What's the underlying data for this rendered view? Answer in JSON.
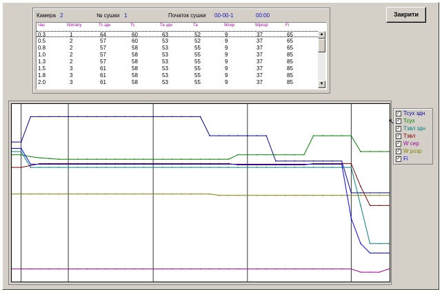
{
  "header": {
    "chamber_label": "Камера",
    "chamber_value": "2",
    "drying_no_label": "№ сушки",
    "drying_no_value": "1",
    "start_label": "Початок сушки",
    "start_date": "00-00-1",
    "start_time": "00:00"
  },
  "close_button": "Закрити",
  "table": {
    "columns": [
      "Час",
      "N/етапу",
      "Тс здн",
      "Тс",
      "Та здн",
      "Та",
      "Wсер",
      "Wроэр",
      "Fi"
    ],
    "rows": [
      [
        "0.3",
        "1",
        "64",
        "60",
        "63",
        "52",
        "9",
        "37",
        "65"
      ],
      [
        "0.5",
        "2",
        "57",
        "60",
        "53",
        "52",
        "9",
        "37",
        "65"
      ],
      [
        "0.8",
        "2",
        "57",
        "58",
        "53",
        "55",
        "9",
        "37",
        "65"
      ],
      [
        "1.0",
        "2",
        "57",
        "58",
        "53",
        "55",
        "9",
        "37",
        "85"
      ],
      [
        "1.3",
        "2",
        "57",
        "58",
        "53",
        "55",
        "9",
        "37",
        "85"
      ],
      [
        "1.5",
        "3",
        "61",
        "58",
        "53",
        "55",
        "9",
        "37",
        "85"
      ],
      [
        "1.8",
        "3",
        "61",
        "58",
        "53",
        "55",
        "9",
        "37",
        "85"
      ],
      [
        "2.0",
        "3",
        "61",
        "58",
        "53",
        "55",
        "9",
        "37",
        "85"
      ]
    ]
  },
  "scroll_up_glyph": "▲",
  "scroll_down_glyph": "▼",
  "legend": [
    {
      "label": "Тсух здн",
      "color": "#0000a0",
      "checked": "✓"
    },
    {
      "label": "Тсух",
      "color": "#008000",
      "checked": "✓"
    },
    {
      "label": "Тзвл здн",
      "color": "#008080",
      "checked": "✓"
    },
    {
      "label": "Тзвл",
      "color": "#800000",
      "checked": "✓"
    },
    {
      "label": "W сер",
      "color": "#a000a0",
      "checked": "✓"
    },
    {
      "label": "W розр",
      "color": "#808000",
      "checked": "✓"
    },
    {
      "label": "Fi",
      "color": "#0000ff",
      "checked": "✓"
    }
  ],
  "cursor_glyph": "↖",
  "chart_data": {
    "type": "line",
    "series": [
      {
        "name": "Тсух здн",
        "color": "#0000a0",
        "values": [
          60,
          60,
          64,
          64,
          64,
          64,
          64,
          64,
          64,
          64,
          64,
          64,
          64,
          64,
          64,
          64,
          64,
          64,
          64,
          64,
          64,
          61,
          61,
          61,
          61,
          61,
          61,
          61,
          57,
          57,
          57,
          57,
          57,
          57,
          57,
          57,
          52,
          52,
          52,
          52,
          52
        ]
      },
      {
        "name": "Тсух",
        "color": "#008000",
        "values": [
          58,
          58,
          57.7,
          57.5,
          57.4,
          57.3,
          57.3,
          57.3,
          57.3,
          57.3,
          57.3,
          57.3,
          57.3,
          57.3,
          57.3,
          57.3,
          57.3,
          57.3,
          57.3,
          57.3,
          57.3,
          57.3,
          57.3,
          57.3,
          58,
          58,
          58,
          58,
          58,
          58,
          58,
          58,
          61,
          61,
          61,
          61,
          61,
          58.5,
          58.5,
          58.5,
          58.5
        ]
      },
      {
        "name": "Тзвл здн",
        "color": "#008080",
        "values": [
          58.5,
          58.5,
          56,
          56,
          56,
          56,
          56,
          56,
          56,
          56,
          56,
          56,
          56,
          56,
          56,
          56,
          56,
          56,
          56,
          56,
          56,
          56,
          56,
          56,
          56,
          56,
          56,
          56,
          56,
          56,
          56,
          56,
          56,
          56,
          56,
          56,
          56,
          50,
          44,
          44,
          44
        ]
      },
      {
        "name": "Тзвл",
        "color": "#800000",
        "values": [
          56,
          56,
          56.3,
          56.6,
          56.6,
          56.6,
          56.6,
          56.6,
          56.6,
          56.6,
          56.6,
          56.6,
          56.6,
          56.6,
          56.6,
          56.6,
          56.6,
          56.6,
          56.6,
          56.6,
          56.6,
          56.6,
          56.6,
          56.6,
          56.4,
          56.4,
          56.4,
          56.4,
          56.4,
          56.4,
          56.4,
          56.4,
          56.6,
          56.6,
          56.6,
          56.6,
          56.6,
          53,
          50,
          50,
          50
        ]
      },
      {
        "name": "W сер",
        "color": "#a000a0",
        "values": [
          40,
          40,
          40,
          40,
          40,
          40,
          40,
          40,
          40,
          40,
          40,
          40,
          40,
          40,
          40,
          40,
          40,
          40,
          40,
          40,
          40,
          40,
          40,
          40,
          40,
          40,
          40,
          40,
          40,
          40,
          40,
          40,
          40,
          40,
          40,
          40,
          40,
          39.5,
          39.5,
          39.5,
          40
        ]
      },
      {
        "name": "W розр",
        "color": "#808000",
        "values": [
          51.8,
          51.8,
          51.8,
          51.8,
          51.8,
          51.8,
          51.8,
          51.8,
          51.8,
          51.8,
          51.8,
          51.8,
          51.8,
          51.8,
          51.8,
          51.8,
          51.8,
          51.8,
          51.8,
          51.8,
          51.8,
          51.8,
          51.6,
          51.6,
          51.6,
          51.6,
          51.6,
          51.6,
          51.6,
          51.6,
          51.6,
          51.6,
          51.6,
          51.6,
          51.6,
          51.6,
          51.6,
          51.6,
          51.6,
          51.6,
          51.6
        ]
      },
      {
        "name": "Fi",
        "color": "#0000ff",
        "values": [
          59,
          59,
          56.5,
          56.5,
          56.5,
          56.5,
          56.5,
          56.5,
          56.5,
          56.5,
          56.5,
          56.5,
          56.5,
          56.5,
          56.5,
          56.5,
          56.5,
          56.5,
          56.5,
          56.5,
          56.5,
          56.5,
          56.5,
          56.5,
          56.5,
          56.5,
          56.5,
          56.5,
          56.5,
          56.5,
          56.5,
          56.5,
          56.5,
          56.5,
          56.5,
          56.5,
          48,
          44,
          42.5,
          42.5,
          42.5
        ]
      }
    ],
    "ylim": [
      38,
      66
    ],
    "stage_markers": [
      1,
      6,
      15,
      25,
      36
    ],
    "grid": false
  }
}
